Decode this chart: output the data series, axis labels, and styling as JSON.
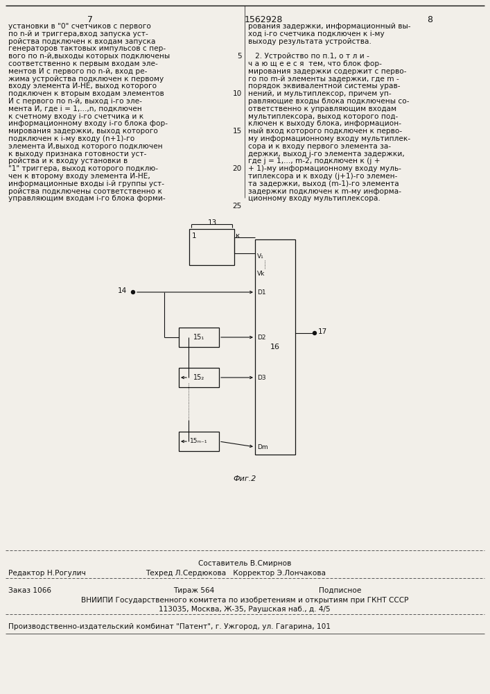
{
  "page_number_left": "7",
  "page_number_center": "1562928",
  "page_number_right": "8",
  "bg_color": "#f2efe9",
  "text_color": "#1a1a1a",
  "left_column_text": [
    "установки в \"0\" счетчиков с первого",
    "по n-й и триггера,вход запуска уст-",
    "ройства подключен к входам запуска",
    "генераторов тактовых импульсов с пер-",
    "вого по n-й,выходы которых подключены",
    "соответственно к первым входам эле-",
    "ментов И с первого по n-й, вход ре-",
    "жима устройства подключен к первому",
    "входу элемента И-НЕ, выход которого",
    "подключен к вторым входам элементов",
    "И с первого по n-й, выход i-го эле-",
    "мента И, где i = 1,...,n, подключен",
    "к счетному входу i-го счетчика и к",
    "информационному входу i-го блока фор-",
    "мирования задержки, выход которого",
    "подключен к i-му входу (n+1)-го",
    "элемента И,выход которого подключен",
    "к выходу признака готовности уст-",
    "ройства и к входу установки в",
    "\"1\" триггера, выход которого подклю-",
    "чен к второму входу элемента И-НЕ,",
    "информационные входы i-й группы уст-",
    "ройства подключены соответственно к",
    "управляющим входам i-го блока форми-"
  ],
  "right_column_text": [
    "рования задержки, информационный вы-",
    "ход i-го счетчика подключен к i-му",
    "выходу результата устройства.",
    "",
    "   2. Устройство по п.1, о т л и -",
    "ч а ю щ е е с я  тем, что блок фор-",
    "мирования задержки содержит с перво-",
    "го по m-й элементы задержки, где m -",
    "порядок эквивалентной системы урав-",
    "нений, и мультиплексор, причем уп-",
    "равляющие входы блока подключены со-",
    "ответственно к управляющим входам",
    "мультиплексора, выход которого под-",
    "ключен к выходу блока, информацион-",
    "ный вход которого подключен к перво-",
    "му информационному входу мультиплек-",
    "сора и к входу первого элемента за-",
    "держки, выход j-го элемента задержки,",
    "где j = 1,..., m-2, подключен к (j +",
    "+ 1)-му информационному входу муль-",
    "типлексора и к входу (j+1)-го элемен-",
    "та задержки, выход (m-1)-го элемента",
    "задержки подключен к m-му информа-",
    "ционному входу мультиплексора."
  ],
  "line_numbers": [
    5,
    10,
    15,
    20,
    25
  ],
  "fig_caption": "Фиг.2",
  "footer_составитель": "Составитель В.Смирнов",
  "footer_редактор": "Редактор Н.Рогулич",
  "footer_техред": "Техред Л.Сердюкова",
  "footer_корректор": "Корректор Э.Лончакова",
  "footer_заказ": "Заказ 1066",
  "footer_тираж": "Тираж 564",
  "footer_подписное": "Подписное",
  "footer_вниипи": "ВНИИПИ Государственного комитета по изобретениям и открытиям при ГКНТ СССР",
  "footer_адрес": "113035, Москва, Ж-35, Раушская наб., д. 4/5",
  "footer_комбинат": "Производственно-издательский комбинат \"Патент\", г. Ужгород, ул. Гагарина, 101"
}
